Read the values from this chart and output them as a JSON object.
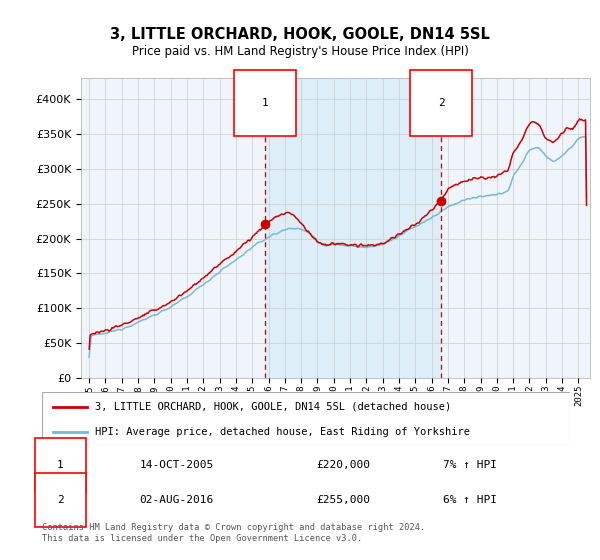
{
  "title": "3, LITTLE ORCHARD, HOOK, GOOLE, DN14 5SL",
  "subtitle": "Price paid vs. HM Land Registry's House Price Index (HPI)",
  "sale1_year": 2005.79,
  "sale1_price": 220000,
  "sale1_label": "1",
  "sale1_hpi_pct": "7%",
  "sale1_date": "14-OCT-2005",
  "sale2_year": 2016.58,
  "sale2_price": 255000,
  "sale2_label": "2",
  "sale2_hpi_pct": "6%",
  "sale2_date": "02-AUG-2016",
  "hpi_color": "#7ab8d9",
  "price_color": "#cc0000",
  "vline_color": "#cc0000",
  "plot_bg": "#f0f5fb",
  "shade_bg": "#ddeef8",
  "grid_color": "#cccccc",
  "legend1": "3, LITTLE ORCHARD, HOOK, GOOLE, DN14 5SL (detached house)",
  "legend2": "HPI: Average price, detached house, East Riding of Yorkshire",
  "footnote": "Contains HM Land Registry data © Crown copyright and database right 2024.\nThis data is licensed under the Open Government Licence v3.0.",
  "ylim": [
    0,
    430000
  ],
  "yticks": [
    0,
    50000,
    100000,
    150000,
    200000,
    250000,
    300000,
    350000,
    400000
  ],
  "xlim_start": 1994.5,
  "xlim_end": 2025.7,
  "hpi_knots_x": [
    1995,
    1996,
    1997,
    1998,
    1999,
    2000,
    2001,
    2002,
    2003,
    2004,
    2005,
    2006,
    2007,
    2007.6,
    2008.5,
    2009,
    2009.5,
    2010,
    2011,
    2012,
    2013,
    2014,
    2015,
    2016,
    2017,
    2018,
    2019,
    2020,
    2020.7,
    2021,
    2021.5,
    2022,
    2022.5,
    2023,
    2023.5,
    2024,
    2024.5,
    2025
  ],
  "hpi_knots_y": [
    60000,
    64000,
    71000,
    80000,
    91000,
    102000,
    117000,
    135000,
    153000,
    170000,
    188000,
    203000,
    213000,
    216000,
    208000,
    196000,
    190000,
    192000,
    190000,
    188000,
    192000,
    204000,
    218000,
    230000,
    246000,
    256000,
    260000,
    263000,
    270000,
    291000,
    308000,
    328000,
    332000,
    318000,
    310000,
    320000,
    330000,
    345000
  ],
  "price_knots_x": [
    1995,
    1996,
    1997,
    1998,
    1999,
    2000,
    2001,
    2002,
    2003,
    2004,
    2005,
    2005.79,
    2006.2,
    2006.8,
    2007.2,
    2007.6,
    2008,
    2008.5,
    2009,
    2009.5,
    2010,
    2011,
    2012,
    2013,
    2014,
    2015,
    2016,
    2016.58,
    2017,
    2018,
    2019,
    2020,
    2020.7,
    2021,
    2021.5,
    2022,
    2022.3,
    2022.6,
    2023,
    2023.5,
    2024,
    2024.3,
    2024.6,
    2025
  ],
  "price_knots_y": [
    63000,
    68000,
    76000,
    86000,
    97000,
    109000,
    125000,
    144000,
    163000,
    182000,
    202000,
    220000,
    228000,
    235000,
    238000,
    232000,
    222000,
    208000,
    195000,
    191000,
    193000,
    191000,
    189000,
    193000,
    206000,
    220000,
    240000,
    255000,
    272000,
    283000,
    287000,
    289000,
    298000,
    322000,
    342000,
    365000,
    368000,
    362000,
    345000,
    338000,
    352000,
    360000,
    355000,
    370000
  ]
}
